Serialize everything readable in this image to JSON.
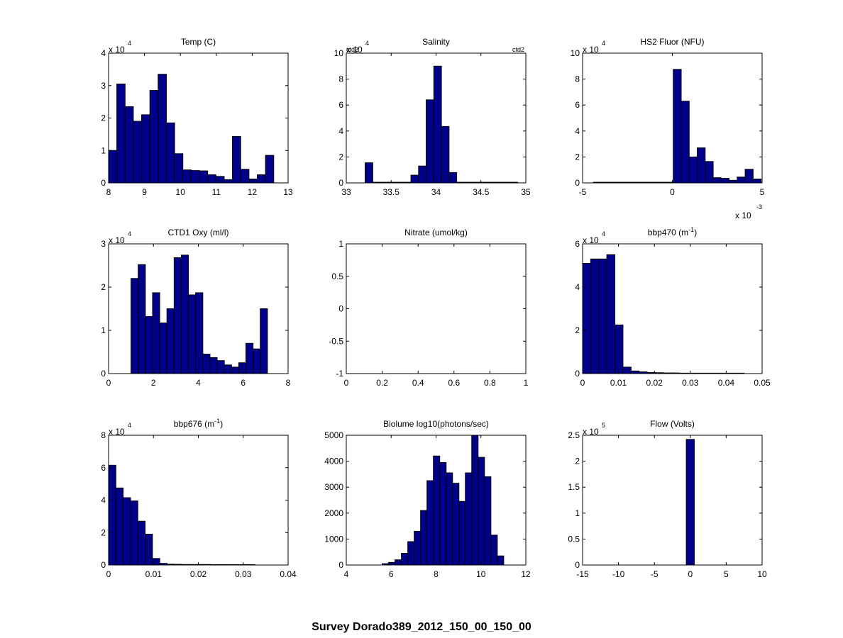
{
  "figure": {
    "suptitle": "Survey Dorado389_2012_150_00_150_00",
    "bar_color": "#00008b",
    "edge_color": "#000000"
  },
  "chart_data": [
    {
      "type": "bar",
      "title": "Temp (C)",
      "multiplier": {
        "base": "x 10",
        "exp": "4"
      },
      "xlim": [
        8,
        13
      ],
      "xticks": [
        "8",
        "9",
        "10",
        "11",
        "12",
        "13"
      ],
      "xtick_values": [
        8,
        9,
        10,
        11,
        12,
        13
      ],
      "ylim": [
        0,
        4
      ],
      "yticks": [
        "0",
        "1",
        "2",
        "3",
        "4"
      ],
      "ytick_values": [
        0,
        1,
        2,
        3,
        4
      ],
      "bin_start": 8.0,
      "bin_width": 0.23,
      "values": [
        1.0,
        3.05,
        2.35,
        1.9,
        2.1,
        2.85,
        3.35,
        1.85,
        0.9,
        0.4,
        0.38,
        0.37,
        0.25,
        0.2,
        0.1,
        1.43,
        0.42,
        0.12,
        0.25,
        0.85
      ]
    },
    {
      "type": "bar",
      "title": "Salinity",
      "multiplier": {
        "base": "x 10",
        "exp": "4"
      },
      "corner_labels": {
        "left": "ctd2",
        "right": "ctd2"
      },
      "xlim": [
        33,
        35
      ],
      "xticks": [
        "33",
        "33.5",
        "34",
        "34.5",
        "35"
      ],
      "xtick_values": [
        33,
        33.5,
        34,
        34.5,
        35
      ],
      "ylim": [
        0,
        10
      ],
      "yticks": [
        "0",
        "2",
        "4",
        "6",
        "8",
        "10"
      ],
      "ytick_values": [
        0,
        2,
        4,
        6,
        8,
        10
      ],
      "bin_start": 33.21,
      "bin_width": 0.085,
      "values": [
        1.55,
        0.05,
        0.05,
        0.05,
        0.05,
        0.05,
        0.6,
        1.3,
        6.4,
        9.0,
        4.35,
        0.8,
        0.05,
        0.05,
        0.05,
        0.05,
        0.05,
        0.05,
        0.05,
        0.05
      ]
    },
    {
      "type": "bar",
      "title": "HS2 Fluor (NFU)",
      "multiplier": {
        "base": "x 10",
        "exp": "4"
      },
      "x_multiplier": {
        "base": "x 10",
        "exp": "-3"
      },
      "xlim": [
        -5,
        5
      ],
      "xticks": [
        "-5",
        "0",
        "5"
      ],
      "xtick_values": [
        -5,
        0,
        5
      ],
      "ylim": [
        0,
        10
      ],
      "yticks": [
        "0",
        "2",
        "4",
        "6",
        "8",
        "10"
      ],
      "ytick_values": [
        0,
        2,
        4,
        6,
        8,
        10
      ],
      "bin_start": -4.4,
      "bin_width": 0.445,
      "values": [
        0.05,
        0.05,
        0.05,
        0.05,
        0.05,
        0.05,
        0.05,
        0.05,
        0.05,
        0.05,
        8.75,
        6.3,
        2.0,
        2.7,
        1.65,
        0.4,
        0.35,
        0.2,
        0.45,
        1.05,
        0.3
      ]
    },
    {
      "type": "bar",
      "title": "CTD1 Oxy (ml/l)",
      "multiplier": {
        "base": "x 10",
        "exp": "4"
      },
      "xlim": [
        0,
        8
      ],
      "xticks": [
        "0",
        "2",
        "4",
        "6",
        "8"
      ],
      "xtick_values": [
        0,
        2,
        4,
        6,
        8
      ],
      "ylim": [
        0,
        3
      ],
      "yticks": [
        "0",
        "1",
        "2",
        "3"
      ],
      "ytick_values": [
        0,
        1,
        2,
        3
      ],
      "bin_start": 1.0,
      "bin_width": 0.32,
      "values": [
        2.2,
        2.52,
        1.32,
        1.87,
        1.17,
        1.5,
        2.68,
        2.74,
        1.82,
        1.87,
        0.45,
        0.37,
        0.3,
        0.2,
        0.15,
        0.25,
        0.7,
        0.57,
        1.5
      ]
    },
    {
      "type": "bar",
      "title": "Nitrate (umol/kg)",
      "xlim": [
        0,
        1
      ],
      "xticks": [
        "0",
        "0.2",
        "0.4",
        "0.6",
        "0.8",
        "1"
      ],
      "xtick_values": [
        0,
        0.2,
        0.4,
        0.6,
        0.8,
        1
      ],
      "ylim": [
        -1,
        1
      ],
      "yticks": [
        "-1",
        "-0.5",
        "0",
        "0.5",
        "1"
      ],
      "ytick_values": [
        -1,
        -0.5,
        0,
        0.5,
        1
      ],
      "bin_start": 0,
      "bin_width": 0.1,
      "values": []
    },
    {
      "type": "bar",
      "title": "bbp470 (m",
      "title_sup": "-1",
      "title_end": ")",
      "multiplier": {
        "base": "x 10",
        "exp": "4"
      },
      "xlim": [
        0,
        0.05
      ],
      "xticks": [
        "0",
        "0.01",
        "0.02",
        "0.03",
        "0.04",
        "0.05"
      ],
      "xtick_values": [
        0,
        0.01,
        0.02,
        0.03,
        0.04,
        0.05
      ],
      "ylim": [
        0,
        6
      ],
      "yticks": [
        "0",
        "2",
        "4",
        "6"
      ],
      "ytick_values": [
        0,
        2,
        4,
        6
      ],
      "bin_start": 0,
      "bin_width": 0.00225,
      "values": [
        5.1,
        5.3,
        5.3,
        5.5,
        2.25,
        0.3,
        0.12,
        0.08,
        0.05,
        0.04,
        0.03,
        0.03,
        0.02,
        0.02,
        0.02,
        0.02,
        0.02,
        0.02,
        0.02,
        0.02
      ]
    },
    {
      "type": "bar",
      "title": "bbp676 (m",
      "title_sup": "-1",
      "title_end": ")",
      "multiplier": {
        "base": "x 10",
        "exp": "4"
      },
      "xlim": [
        0,
        0.04
      ],
      "xticks": [
        "0",
        "0.01",
        "0.02",
        "0.03",
        "0.04"
      ],
      "xtick_values": [
        0,
        0.01,
        0.02,
        0.03,
        0.04
      ],
      "ylim": [
        0,
        8
      ],
      "yticks": [
        "0",
        "2",
        "4",
        "6",
        "8"
      ],
      "ytick_values": [
        0,
        2,
        4,
        6,
        8
      ],
      "bin_start": 0,
      "bin_width": 0.00163,
      "values": [
        6.15,
        4.75,
        4.15,
        3.95,
        2.7,
        1.9,
        0.4,
        0.1,
        0.05,
        0.04,
        0.03,
        0.03,
        0.03,
        0.03,
        0.02,
        0.02,
        0.02,
        0.02,
        0.02,
        0.02
      ]
    },
    {
      "type": "bar",
      "title": "Biolume log10(photons/sec)",
      "xlim": [
        4,
        12
      ],
      "xticks": [
        "4",
        "6",
        "8",
        "10",
        "12"
      ],
      "xtick_values": [
        4,
        6,
        8,
        10,
        12
      ],
      "ylim": [
        0,
        5000
      ],
      "yticks": [
        "0",
        "1000",
        "2000",
        "3000",
        "4000",
        "5000"
      ],
      "ytick_values": [
        0,
        1000,
        2000,
        3000,
        4000,
        5000
      ],
      "bin_start": 5.6,
      "bin_width": 0.285,
      "values": [
        50,
        100,
        200,
        450,
        900,
        1300,
        2100,
        3250,
        4200,
        3950,
        3550,
        3150,
        2450,
        3550,
        5000,
        4150,
        3400,
        1150,
        350
      ]
    },
    {
      "type": "bar",
      "title": "Flow (Volts)",
      "multiplier": {
        "base": "x 10",
        "exp": "5"
      },
      "xlim": [
        -15,
        10
      ],
      "xticks": [
        "-15",
        "-10",
        "-5",
        "0",
        "5",
        "10"
      ],
      "xtick_values": [
        -15,
        -10,
        -5,
        0,
        5,
        10
      ],
      "ylim": [
        0,
        2.5
      ],
      "yticks": [
        "0",
        "0.5",
        "1",
        "1.5",
        "2",
        "2.5"
      ],
      "ytick_values": [
        0,
        0.5,
        1,
        1.5,
        2,
        2.5
      ],
      "bin_start": -0.56,
      "bin_width": 1.12,
      "values": [
        2.42
      ]
    }
  ]
}
